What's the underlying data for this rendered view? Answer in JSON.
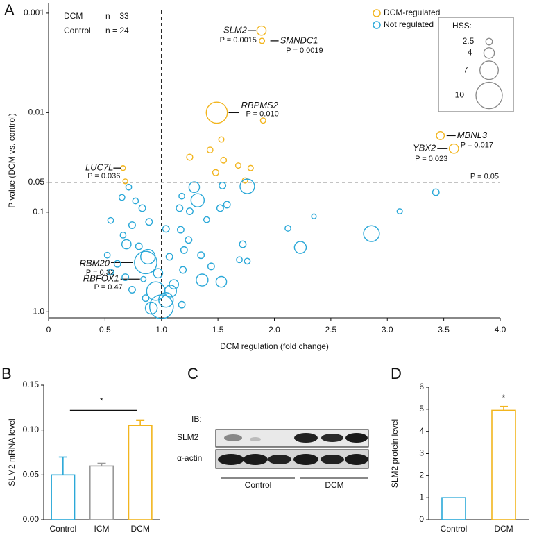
{
  "chart_data": [
    {
      "type": "scatter",
      "panel_label": "A",
      "xlabel": "DCM regulation (fold change)",
      "ylabel": "P value (DCM vs. control)",
      "log_y": true,
      "xlim": [
        0,
        4
      ],
      "ylim": [
        1.15,
        0.0008
      ],
      "xticks": [
        0,
        0.5,
        {
          "value": 1,
          "label": "1.0"
        },
        1.5,
        {
          "value": 2,
          "label": "2.0"
        },
        2.5,
        {
          "value": 3,
          "label": "3.0"
        },
        3.5,
        {
          "value": 4,
          "label": "4.0"
        }
      ],
      "yticks": [
        0.001,
        0.01,
        0.05,
        0.1,
        {
          "value": 1,
          "label": "1.0"
        }
      ],
      "groups": [
        {
          "name": "DCM",
          "n_label": "n = 33"
        },
        {
          "name": "Control",
          "n_label": "n = 24"
        }
      ],
      "reference_lines": {
        "x": 1,
        "y": 0.05,
        "y_label": "P = 0.05"
      },
      "size_legend": {
        "title": "HSS:",
        "values": [
          2.5,
          4,
          7,
          10
        ]
      },
      "series": [
        {
          "name": "DCM-regulated",
          "color": "#f2b51e",
          "x": [
            1.886,
            1.89,
            1.49,
            3.47,
            3.59,
            0.66,
            1.9,
            1.53,
            1.43,
            1.25,
            1.55,
            1.68,
            1.79,
            1.48,
            1.74,
            0.68
          ],
          "values": [
            0.0015,
            0.0019,
            0.01,
            0.017,
            0.023,
            0.036,
            0.012,
            0.0186,
            0.0237,
            0.028,
            0.03,
            0.034,
            0.036,
            0.04,
            0.048,
            0.049
          ],
          "sizes": [
            3.5,
            2,
            8,
            3,
            3.5,
            1.8,
            2,
            2,
            2.2,
            2.3,
            2.2,
            2,
            2,
            2.3,
            2,
            1.8
          ],
          "labels": [
            "SLM2",
            "SMNDC1",
            "RBPMS2",
            "MBNL3",
            "YBX2",
            "LUC7L",
            null,
            null,
            null,
            null,
            null,
            null,
            null,
            null,
            null,
            null
          ],
          "value_labels": [
            "P = 0.0015",
            "P = 0.0019",
            "P = 0.010",
            "P = 0.017",
            "P = 0.023",
            "P = 0.036",
            null,
            null,
            null,
            null,
            null,
            null,
            null,
            null,
            null,
            null
          ]
        },
        {
          "name": "Not regulated",
          "color": "#2aa8d8",
          "x": [
            0.86,
            0.84,
            3.43,
            3.11,
            2.86,
            2.35,
            2.12,
            2.23,
            1.76,
            1.32,
            1.29,
            1.54,
            1.58,
            1.4,
            1.52,
            1.72,
            1.76,
            1.69,
            1.53,
            1.36,
            1.19,
            1.11,
            1.08,
            1.04,
            1.0,
            1.18,
            1.17,
            1.24,
            1.2,
            1.16,
            1.18,
            1.35,
            1.25,
            1.04,
            1.07,
            1.44,
            0.95,
            0.88,
            0.71,
            0.65,
            0.55,
            0.74,
            0.83,
            0.8,
            0.69,
            0.61,
            0.52,
            0.68,
            0.74,
            0.86,
            0.55,
            0.89,
            0.77,
            0.66,
            0.97,
            0.91
          ],
          "values": [
            0.32,
            0.47,
            0.063,
            0.098,
            0.164,
            0.11,
            0.145,
            0.226,
            0.055,
            0.076,
            0.056,
            0.054,
            0.084,
            0.119,
            0.091,
            0.21,
            0.31,
            0.3,
            0.5,
            0.48,
            0.38,
            0.53,
            0.62,
            0.76,
            0.89,
            0.85,
            0.15,
            0.19,
            0.24,
            0.091,
            0.069,
            0.27,
            0.098,
            0.147,
            0.28,
            0.35,
            0.62,
            0.28,
            0.056,
            0.071,
            0.121,
            0.135,
            0.091,
            0.22,
            0.21,
            0.33,
            0.27,
            0.45,
            0.6,
            0.73,
            0.4,
            0.125,
            0.077,
            0.17,
            0.41,
            0.92
          ],
          "sizes": [
            8.5,
            2,
            2.5,
            2,
            6,
            1.8,
            2.2,
            4.5,
            5.5,
            5,
            4,
            2.5,
            2.5,
            2.2,
            2.5,
            2.5,
            2.2,
            2.2,
            4,
            4.5,
            2.5,
            3.5,
            4.5,
            5.5,
            9,
            2.5,
            2.5,
            2.5,
            2.5,
            2.5,
            2.2,
            2.5,
            2.5,
            2.5,
            2.5,
            2.5,
            7,
            5.5,
            2.2,
            2.2,
            2.2,
            2.5,
            2.5,
            2.5,
            3.5,
            2.5,
            2.2,
            2.5,
            2.5,
            2.5,
            2.2,
            2.5,
            2.2,
            2.2,
            3.5,
            4.5
          ],
          "labels": [
            "RBM20",
            "RBFOX1",
            null,
            null,
            null,
            null,
            null,
            null,
            null,
            null,
            null,
            null,
            null,
            null,
            null,
            null,
            null,
            null,
            null,
            null,
            null,
            null,
            null,
            null,
            null,
            null,
            null,
            null,
            null,
            null,
            null,
            null,
            null,
            null,
            null,
            null,
            null,
            null,
            null,
            null,
            null,
            null,
            null,
            null,
            null,
            null,
            null,
            null,
            null,
            null,
            null,
            null,
            null,
            null,
            null,
            null
          ],
          "value_labels": [
            "P = 0.32",
            "P = 0.47",
            null,
            null,
            null,
            null,
            null,
            null,
            null,
            null,
            null,
            null,
            null,
            null,
            null,
            null,
            null,
            null,
            null,
            null,
            null,
            null,
            null,
            null,
            null,
            null,
            null,
            null,
            null,
            null,
            null,
            null,
            null,
            null,
            null,
            null,
            null,
            null,
            null,
            null,
            null,
            null,
            null,
            null,
            null,
            null,
            null,
            null,
            null,
            null,
            null,
            null,
            null,
            null,
            null,
            null
          ]
        }
      ]
    },
    {
      "type": "bar",
      "panel_label": "B",
      "ylabel": "SLM2 mRNA level",
      "categories": [
        "Control",
        "ICM",
        "DCM"
      ],
      "values": [
        0.05,
        0.06,
        0.105
      ],
      "errors": [
        0.02,
        0.003,
        0.006
      ],
      "colors": [
        "#2aa8d8",
        "#999999",
        "#f2b51e"
      ],
      "ylim": [
        0,
        0.15
      ],
      "yticks": [
        {
          "value": 0,
          "label": "0.00"
        },
        0.05,
        {
          "value": 0.1,
          "label": "0.10"
        },
        0.15
      ],
      "significance": {
        "label": "*",
        "bracket": true
      }
    },
    {
      "type": "bar",
      "panel_label": "D",
      "ylabel": "SLM2 protein level",
      "categories": [
        "Control",
        "DCM"
      ],
      "values": [
        1,
        4.95
      ],
      "errors": [
        null,
        0.18
      ],
      "colors": [
        "#2aa8d8",
        "#f2b51e"
      ],
      "ylim": [
        0,
        6
      ],
      "yticks": [
        0,
        1,
        2,
        3,
        4,
        5,
        6
      ],
      "significance": {
        "label": "*",
        "bracket": false
      }
    }
  ],
  "blot": {
    "panel_label": "C",
    "ib_label": "IB:",
    "rows": [
      "SLM2",
      "α-actin"
    ],
    "groups": [
      "Control",
      "DCM"
    ]
  }
}
